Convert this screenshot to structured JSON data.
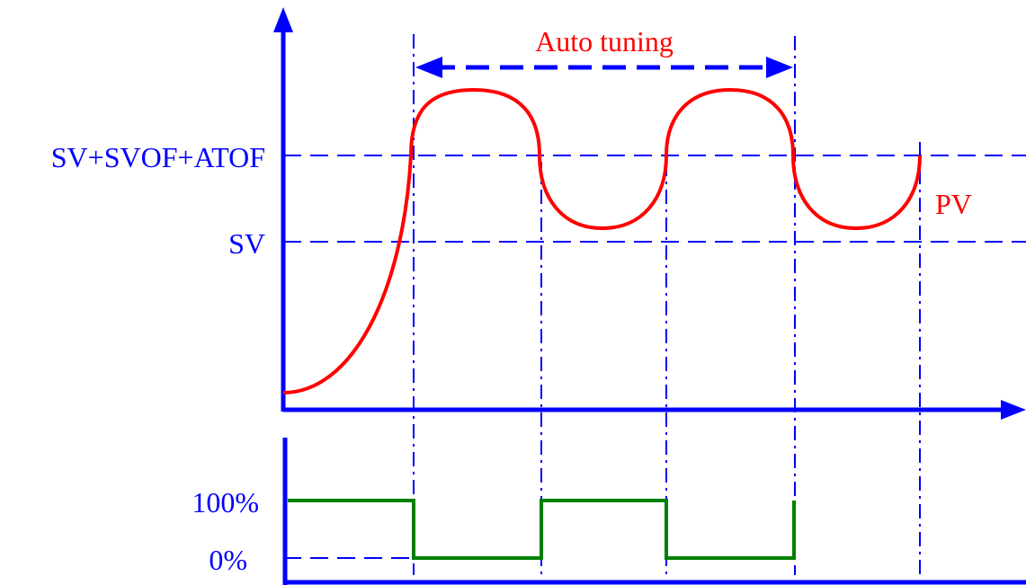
{
  "labels": {
    "auto_tuning": "Auto tuning",
    "sv_svof_atof": "SV+SVOF+ATOF",
    "sv": "SV",
    "pv": "PV",
    "output_high": "100%",
    "output_low": "0%"
  },
  "colors": {
    "axis": "#0000ff",
    "pv_curve": "#ff0000",
    "output_signal": "#008000",
    "label_blue": "#0000ff",
    "label_red": "#ff0000"
  }
}
